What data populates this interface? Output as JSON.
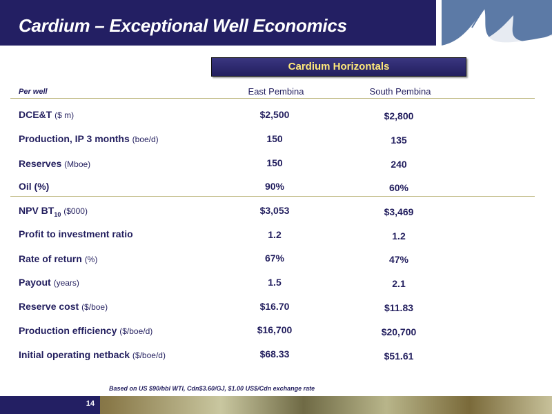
{
  "title": "Cardium – Exceptional Well Economics",
  "table_heading": "Cardium Horizontals",
  "per_well_label": "Per well",
  "columns": [
    "East Pembina",
    "South Pembina"
  ],
  "rows": [
    {
      "label": "DCE&T",
      "unit": "($ m)",
      "east": "$2,500",
      "south": "$2,800"
    },
    {
      "label": "Production, IP 3 months",
      "unit": "(boe/d)",
      "east": "150",
      "south": "135"
    },
    {
      "label": "Reserves",
      "unit": "(Mboe)",
      "east": "150",
      "south": "240"
    },
    {
      "label": "Oil (%)",
      "unit": "",
      "east": "90%",
      "south": "60%"
    },
    {
      "label": "NPV BT",
      "sub": "10",
      "unit": "($000)",
      "east": "$3,053",
      "south": "$3,469"
    },
    {
      "label": "Profit to investment ratio",
      "unit": "",
      "east": "1.2",
      "south": "1.2"
    },
    {
      "label": "Rate of return",
      "unit": "(%)",
      "east": "67%",
      "south": "47%"
    },
    {
      "label": "Payout",
      "unit": "(years)",
      "east": "1.5",
      "south": "2.1"
    },
    {
      "label": "Reserve cost",
      "unit": "($/boe)",
      "east": "$16.70",
      "south": "$11.83"
    },
    {
      "label": "Production efficiency",
      "unit": "($/boe/d)",
      "east": "$16,700",
      "south": "$20,700"
    },
    {
      "label": "Initial operating netback",
      "unit": "($/boe/d)",
      "east": "$68.33",
      "south": "$51.61"
    }
  ],
  "footnote": "Based on US $90/bbl WTI, Cdn$3.60/GJ, $1.00 US$/Cdn exchange rate",
  "page_number": "14",
  "logo_icon": "wave-logo-icon",
  "colors": {
    "navy": "#231f63",
    "accent": "#ffe97a",
    "rule": "#b9b377"
  }
}
